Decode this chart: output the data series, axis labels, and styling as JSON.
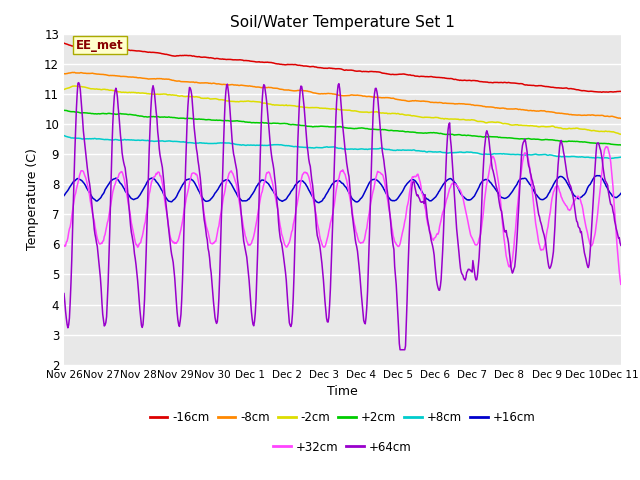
{
  "title": "Soil/Water Temperature Set 1",
  "xlabel": "Time",
  "ylabel": "Temperature (C)",
  "ylim": [
    2.0,
    13.0
  ],
  "yticks": [
    2.0,
    3.0,
    4.0,
    5.0,
    6.0,
    7.0,
    8.0,
    9.0,
    10.0,
    11.0,
    12.0,
    13.0
  ],
  "plot_bg_color": "#e8e8e8",
  "fig_bg_color": "#ffffff",
  "grid_color": "#d0d0d0",
  "annotation_text": "EE_met",
  "annotation_fg": "#880000",
  "annotation_bg": "#ffffcc",
  "annotation_border": "#aaaa00",
  "series": [
    {
      "label": "-16cm",
      "color": "#dd0000"
    },
    {
      "label": "-8cm",
      "color": "#ff8800"
    },
    {
      "label": "-2cm",
      "color": "#dddd00"
    },
    {
      "label": "+2cm",
      "color": "#00cc00"
    },
    {
      "label": "+8cm",
      "color": "#00cccc"
    },
    {
      "label": "+16cm",
      "color": "#0000cc"
    },
    {
      "label": "+32cm",
      "color": "#ff44ff"
    },
    {
      "label": "+64cm",
      "color": "#9900cc"
    }
  ],
  "xtick_labels": [
    "Nov 26",
    "Nov 27",
    "Nov 28",
    "Nov 29",
    "Nov 30",
    "Dec 1",
    "Dec 2",
    "Dec 3",
    "Dec 4",
    "Dec 5",
    "Dec 6",
    "Dec 7",
    "Dec 8",
    "Dec 9",
    "Dec 10",
    "Dec 11"
  ],
  "n_points": 720,
  "n_days": 15
}
